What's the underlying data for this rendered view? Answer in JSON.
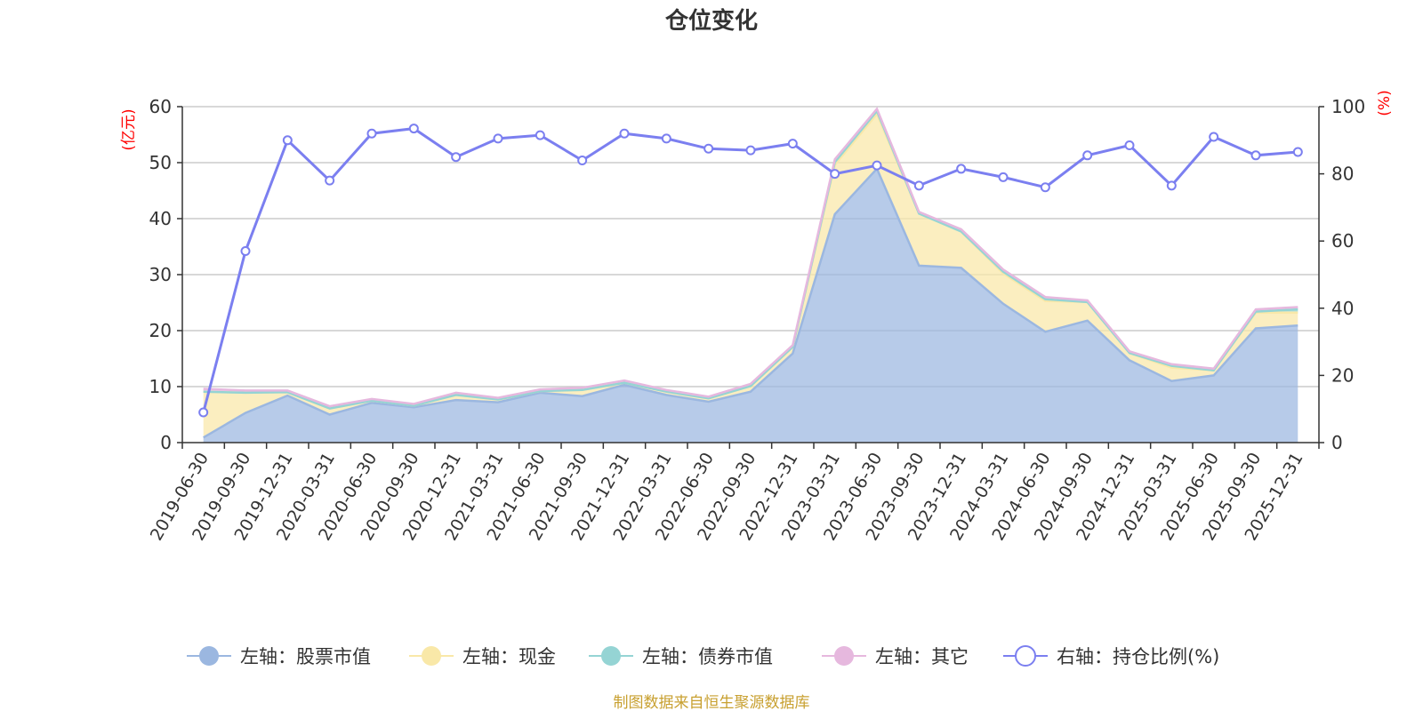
{
  "chart_data": {
    "type": "area",
    "title": "仓位变化",
    "left_axis_unit": "(亿元)",
    "right_axis_unit": "(%)",
    "ylim_left": [
      0,
      60
    ],
    "yticks_left": [
      0,
      10,
      20,
      30,
      40,
      50,
      60
    ],
    "ylim_right": [
      0,
      100
    ],
    "yticks_right": [
      0,
      20,
      40,
      60,
      80,
      100
    ],
    "grid": true,
    "legend_position": "bottom",
    "categories": [
      "2019-06-30",
      "2019-09-30",
      "2019-12-31",
      "2020-03-31",
      "2020-06-30",
      "2020-09-30",
      "2020-12-31",
      "2021-03-31",
      "2021-06-30",
      "2021-09-30",
      "2021-12-31",
      "2022-03-31",
      "2022-06-30",
      "2022-09-30",
      "2022-12-31",
      "2023-03-31",
      "2023-06-30",
      "2023-09-30",
      "2023-12-31",
      "2024-03-31",
      "2024-06-30",
      "2024-09-30",
      "2024-12-31",
      "2025-03-31",
      "2025-06-30",
      "2025-09-30",
      "2025-12-31"
    ],
    "series": [
      {
        "name": "左轴：股票市值",
        "axis": "left",
        "color": "#9bb7e0",
        "values": [
          0.9,
          5.3,
          8.4,
          5.0,
          7.1,
          6.3,
          7.6,
          7.2,
          8.9,
          8.3,
          10.3,
          8.5,
          7.3,
          9.1,
          15.9,
          40.8,
          48.9,
          31.6,
          31.2,
          24.8,
          19.8,
          21.8,
          14.7,
          11.0,
          12.0,
          20.4,
          20.9
        ]
      },
      {
        "name": "左轴：现金",
        "axis": "left",
        "color": "#f9e8a8",
        "values": [
          8.2,
          3.6,
          0.6,
          1.1,
          0.4,
          0.3,
          0.9,
          0.5,
          0.3,
          1.1,
          0.4,
          0.6,
          0.6,
          1.0,
          1.2,
          8.8,
          9.8,
          9.3,
          6.5,
          5.4,
          5.5,
          3.3,
          1.3,
          2.4,
          0.9,
          2.8,
          2.3
        ]
      },
      {
        "name": "左轴：债券市值",
        "axis": "left",
        "color": "#95d4d4",
        "values": [
          0,
          0,
          0,
          0,
          0,
          0,
          0,
          0,
          0,
          0,
          0,
          0,
          0,
          0,
          0,
          0.5,
          0.5,
          0,
          0,
          0.3,
          0.3,
          0,
          0,
          0.3,
          0,
          0.2,
          0.6
        ]
      },
      {
        "name": "左轴：其它",
        "axis": "left",
        "color": "#e6b8de",
        "values": [
          0.5,
          0.4,
          0.3,
          0.4,
          0.3,
          0.3,
          0.4,
          0.3,
          0.3,
          0.4,
          0.4,
          0.3,
          0.3,
          0.4,
          0.3,
          0.5,
          0.4,
          0.3,
          0.4,
          0.4,
          0.4,
          0.3,
          0.3,
          0.3,
          0.3,
          0.4,
          0.4
        ]
      },
      {
        "name": "右轴：持仓比例(%)",
        "axis": "right",
        "color": "#7b7ff0",
        "values": [
          9,
          57,
          90,
          78,
          92,
          93.5,
          85,
          90.5,
          91.5,
          84,
          92,
          90.5,
          87.5,
          87,
          89,
          80,
          82.5,
          76.5,
          81.5,
          79,
          76,
          85.5,
          88.5,
          76.5,
          91,
          85.5,
          86.5
        ]
      }
    ]
  },
  "source_note": "制图数据来自恒生聚源数据库"
}
